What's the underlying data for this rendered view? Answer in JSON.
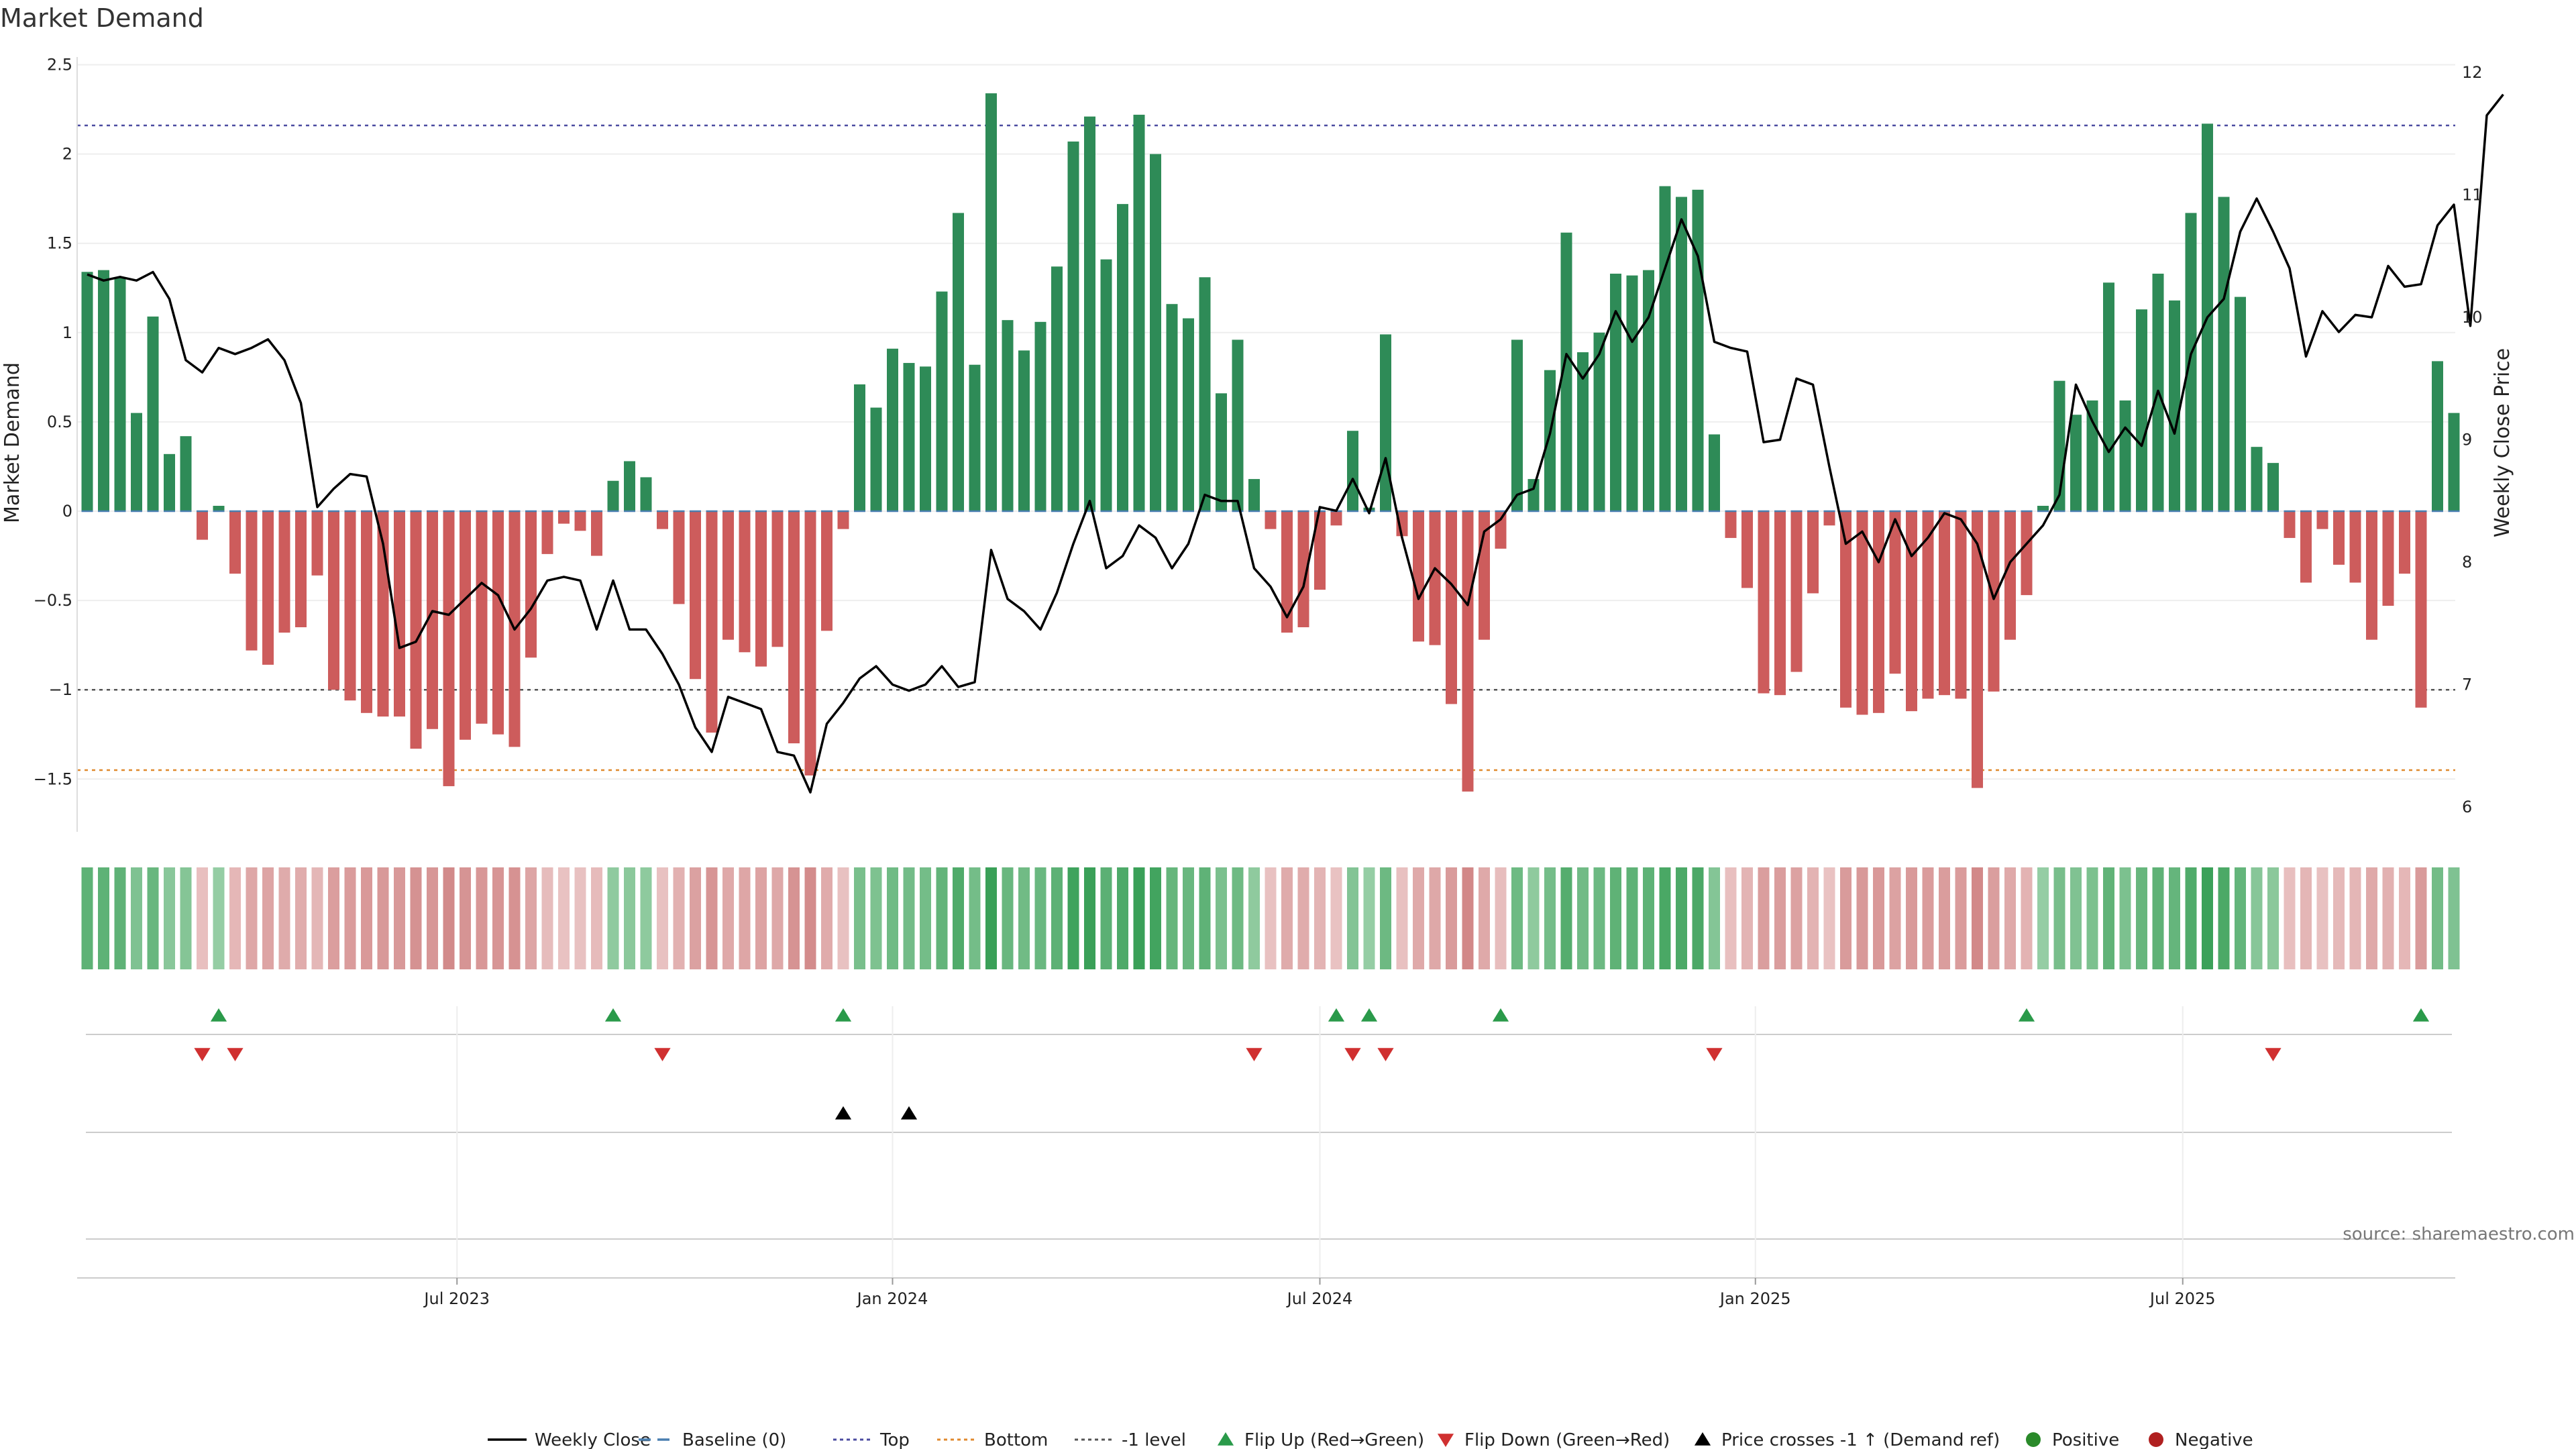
{
  "chart_data": {
    "type": "bar",
    "title": "Market Demand",
    "ylabel_left": "Market Demand",
    "ylabel_right": "Weekly Close Price",
    "source": "source: sharemaestro.com",
    "ylim_left": [
      -1.8,
      2.5
    ],
    "ylim_right": [
      6,
      12
    ],
    "yticks_left": [
      "2.5",
      "2",
      "1.5",
      "1",
      "0.5",
      "0",
      "−0.5",
      "−1",
      "−1.5"
    ],
    "yticks_left_values": [
      2.5,
      2,
      1.5,
      1,
      0.5,
      0,
      -0.5,
      -1,
      -1.5
    ],
    "yticks_right": [
      "12",
      "11",
      "10",
      "9",
      "8",
      "7",
      "6"
    ],
    "yticks_right_values": [
      12,
      11,
      10,
      9,
      8,
      7,
      6
    ],
    "xticks": [
      "Jul 2023",
      "Jan 2024",
      "Jul 2024",
      "Jan 2025",
      "Jul 2025"
    ],
    "xticks_week_index": [
      22.5,
      49,
      75,
      101.5,
      127.5
    ],
    "reference_lines": {
      "top": 2.16,
      "minus_one": -1.0,
      "bottom": -1.45,
      "baseline": 0
    },
    "demand": [
      1.34,
      1.35,
      1.31,
      0.55,
      1.09,
      0.32,
      0.42,
      -0.16,
      0.03,
      -0.35,
      -0.78,
      -0.86,
      -0.68,
      -0.65,
      -0.36,
      -1.0,
      -1.06,
      -1.13,
      -1.15,
      -1.15,
      -1.33,
      -1.22,
      -1.54,
      -1.28,
      -1.19,
      -1.25,
      -1.32,
      -0.82,
      -0.24,
      -0.07,
      -0.11,
      -0.25,
      0.17,
      0.28,
      0.19,
      -0.1,
      -0.52,
      -0.94,
      -1.24,
      -0.72,
      -0.79,
      -0.87,
      -0.76,
      -1.3,
      -1.48,
      -0.67,
      -0.1,
      0.71,
      0.58,
      0.91,
      0.83,
      0.81,
      1.23,
      1.67,
      0.82,
      2.34,
      1.07,
      0.9,
      1.06,
      1.37,
      2.07,
      2.21,
      1.41,
      1.72,
      2.22,
      2.0,
      1.16,
      1.08,
      1.31,
      0.66,
      0.96,
      0.18,
      -0.1,
      -0.68,
      -0.65,
      -0.44,
      -0.08,
      0.45,
      0.02,
      0.99,
      -0.14,
      -0.73,
      -0.75,
      -1.08,
      -1.57,
      -0.72,
      -0.21,
      0.96,
      0.18,
      0.79,
      1.56,
      0.89,
      1.0,
      1.33,
      1.32,
      1.35,
      1.82,
      1.76,
      1.8,
      0.43,
      -0.15,
      -0.43,
      -1.02,
      -1.03,
      -0.9,
      -0.46,
      -0.08,
      -1.1,
      -1.14,
      -1.13,
      -0.91,
      -1.12,
      -1.05,
      -1.03,
      -1.05,
      -1.55,
      -1.01,
      -0.72,
      -0.47,
      0.03,
      0.73,
      0.54,
      0.62,
      1.28,
      0.62,
      1.13,
      1.33,
      1.18,
      1.67,
      2.17,
      1.76,
      1.2,
      0.36,
      0.27,
      -0.15,
      -0.4,
      -0.1,
      -0.3,
      -0.4,
      -0.72,
      -0.53,
      -0.35,
      -1.1,
      0.84,
      0.55
    ],
    "weekly_close": [
      10.35,
      10.3,
      10.33,
      10.3,
      10.37,
      10.15,
      9.65,
      9.55,
      9.75,
      9.7,
      9.75,
      9.82,
      9.65,
      9.3,
      8.45,
      8.6,
      8.72,
      8.7,
      8.15,
      7.3,
      7.35,
      7.6,
      7.57,
      7.7,
      7.83,
      7.73,
      7.45,
      7.62,
      7.85,
      7.88,
      7.85,
      7.45,
      7.85,
      7.45,
      7.45,
      7.25,
      7.0,
      6.65,
      6.45,
      6.9,
      6.85,
      6.8,
      6.45,
      6.42,
      6.12,
      6.68,
      6.85,
      7.05,
      7.15,
      7.0,
      6.95,
      7.0,
      7.15,
      6.98,
      7.02,
      8.1,
      7.7,
      7.6,
      7.45,
      7.75,
      8.15,
      8.5,
      7.95,
      8.05,
      8.3,
      8.2,
      7.95,
      8.15,
      8.55,
      8.5,
      8.5,
      7.95,
      7.8,
      7.55,
      7.8,
      8.45,
      8.42,
      8.68,
      8.4,
      8.85,
      8.2,
      7.7,
      7.95,
      7.82,
      7.65,
      8.25,
      8.35,
      8.55,
      8.6,
      9.05,
      9.7,
      9.5,
      9.7,
      10.05,
      9.8,
      10.0,
      10.4,
      10.8,
      10.5,
      9.8,
      9.75,
      9.72,
      8.98,
      9.0,
      9.5,
      9.45,
      8.78,
      8.15,
      8.25,
      8.0,
      8.35,
      8.05,
      8.2,
      8.4,
      8.35,
      8.15,
      7.7,
      8.0,
      8.15,
      8.3,
      8.55,
      9.45,
      9.15,
      8.9,
      9.1,
      8.95,
      9.4,
      9.05,
      9.7,
      10.0,
      10.15,
      10.7,
      10.97,
      10.7,
      10.4,
      9.68,
      10.05,
      9.88,
      10.02,
      10.0,
      10.42,
      10.25,
      10.27,
      10.75,
      10.92,
      9.93,
      11.65,
      11.82
    ],
    "events": {
      "flip_up_weeks": [
        8,
        32,
        46,
        76,
        78,
        86,
        118,
        142
      ],
      "flip_down_weeks": [
        7,
        9,
        35,
        71,
        77,
        79,
        99,
        133
      ],
      "price_cross_weeks": [
        46,
        50
      ]
    },
    "legend": [
      {
        "label": "Weekly Close",
        "kind": "line",
        "color": "#000000"
      },
      {
        "label": "Baseline (0)",
        "kind": "dash",
        "color": "#4a7fb0"
      },
      {
        "label": "Top",
        "kind": "dot",
        "color": "#4b4ba0"
      },
      {
        "label": "Bottom",
        "kind": "dot",
        "color": "#e08a2e"
      },
      {
        "label": "-1 level",
        "kind": "dot",
        "color": "#555555"
      },
      {
        "label": "Flip Up (Red→Green)",
        "kind": "tri-up",
        "color": "#2a9a4a"
      },
      {
        "label": "Flip Down (Green→Red)",
        "kind": "tri-down",
        "color": "#d03030"
      },
      {
        "label": "Price crosses -1 ↑ (Demand ref)",
        "kind": "tri-up",
        "color": "#000000"
      },
      {
        "label": "Positive",
        "kind": "circle",
        "color": "#2a8a2a"
      },
      {
        "label": "Negative",
        "kind": "circle",
        "color": "#b02020"
      }
    ],
    "colors": {
      "positive_bar": "#2e8b57",
      "negative_bar": "#cd5c5c"
    }
  }
}
